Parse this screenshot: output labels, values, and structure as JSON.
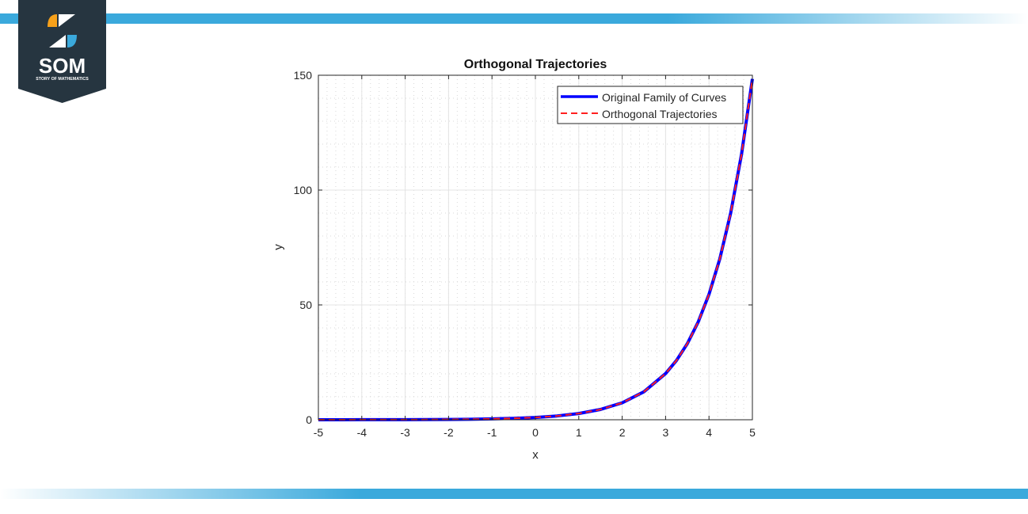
{
  "logo": {
    "text": "SOM",
    "subtitle": "STORY OF MATHEMATICS"
  },
  "colors": {
    "band": "#3aa9dc",
    "logo_bg": "#263540",
    "orange": "#f7a11a",
    "blue_series": "#0000ff",
    "red_series": "#ff2020"
  },
  "chart_data": {
    "type": "line",
    "title": "Orthogonal Trajectories",
    "xlabel": "x",
    "ylabel": "y",
    "xlim": [
      -5,
      5
    ],
    "ylim": [
      0,
      150
    ],
    "xticks": [
      "-5",
      "-4",
      "-3",
      "-2",
      "-1",
      "0",
      "1",
      "2",
      "3",
      "4",
      "5"
    ],
    "yticks": [
      "0",
      "50",
      "100",
      "150"
    ],
    "grid": "on (major solid, minor dotted)",
    "legend_position": "top-right",
    "x": [
      -5,
      -4.5,
      -4,
      -3.5,
      -3,
      -2.5,
      -2,
      -1.5,
      -1,
      -0.5,
      0,
      0.5,
      1,
      1.5,
      2,
      2.5,
      3,
      3.25,
      3.5,
      3.75,
      4,
      4.25,
      4.5,
      4.75,
      5
    ],
    "series": [
      {
        "name": "Original Family of Curves",
        "style": "solid",
        "color": "#0000ff",
        "values": [
          0.007,
          0.011,
          0.018,
          0.03,
          0.05,
          0.08,
          0.14,
          0.22,
          0.37,
          0.61,
          1,
          1.65,
          2.72,
          4.48,
          7.39,
          12.18,
          20.09,
          25.79,
          33.12,
          42.52,
          54.6,
          70.11,
          90.02,
          115.58,
          148.41
        ]
      },
      {
        "name": "Orthogonal Trajectories",
        "style": "dashed",
        "color": "#ff2020",
        "values": [
          0.007,
          0.011,
          0.018,
          0.03,
          0.05,
          0.08,
          0.14,
          0.22,
          0.37,
          0.61,
          1,
          1.65,
          2.72,
          4.48,
          7.39,
          12.18,
          20.09,
          25.79,
          33.12,
          42.52,
          54.6,
          70.11,
          90.02,
          115.58,
          148.41
        ]
      }
    ]
  }
}
